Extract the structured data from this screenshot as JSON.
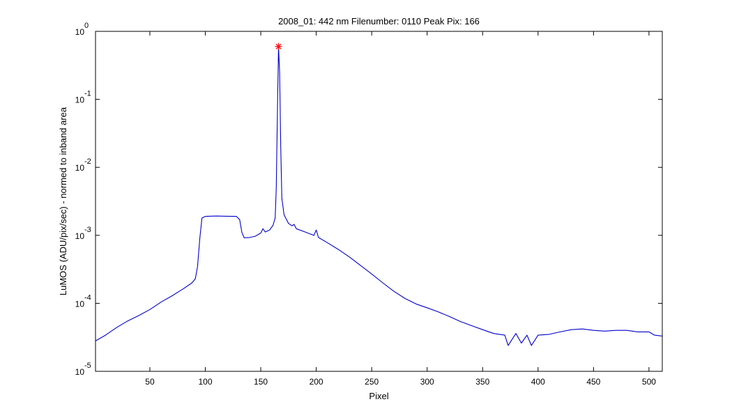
{
  "chart_data": {
    "type": "line",
    "title": "2008_01: 442 nm  Filenumber: 0110 Peak Pix: 166",
    "xlabel": "Pixel",
    "ylabel": "LuMOS (ADU/pix/sec) - normed to inband area",
    "xlim": [
      1,
      512
    ],
    "ylim": [
      1e-05,
      1
    ],
    "yscale": "log",
    "grid": false,
    "x_ticks": [
      50,
      100,
      150,
      200,
      250,
      300,
      350,
      400,
      450,
      500
    ],
    "y_ticks": [
      {
        "value": 1,
        "base": "10",
        "exp": "0"
      },
      {
        "value": 0.1,
        "base": "10",
        "exp": "-1"
      },
      {
        "value": 0.01,
        "base": "10",
        "exp": "-2"
      },
      {
        "value": 0.001,
        "base": "10",
        "exp": "-3"
      },
      {
        "value": 0.0001,
        "base": "10",
        "exp": "-4"
      },
      {
        "value": 1e-05,
        "base": "10",
        "exp": "-5"
      }
    ],
    "series": [
      {
        "color": "#0000cc",
        "points": [
          [
            1,
            2.8e-05
          ],
          [
            10,
            3.4e-05
          ],
          [
            20,
            4.4e-05
          ],
          [
            30,
            5.5e-05
          ],
          [
            40,
            6.6e-05
          ],
          [
            50,
            8.1e-05
          ],
          [
            60,
            0.000104
          ],
          [
            70,
            0.000129
          ],
          [
            80,
            0.000163
          ],
          [
            88,
            0.0002
          ],
          [
            91,
            0.00023
          ],
          [
            93,
            0.00035
          ],
          [
            95,
            0.0009
          ],
          [
            97,
            0.0018
          ],
          [
            100,
            0.0019
          ],
          [
            110,
            0.00192
          ],
          [
            120,
            0.00191
          ],
          [
            128,
            0.0019
          ],
          [
            131,
            0.0017
          ],
          [
            133,
            0.0011
          ],
          [
            135,
            0.00092
          ],
          [
            140,
            0.00093
          ],
          [
            145,
            0.00097
          ],
          [
            150,
            0.00108
          ],
          [
            152,
            0.00125
          ],
          [
            154,
            0.00112
          ],
          [
            158,
            0.0012
          ],
          [
            161,
            0.0014
          ],
          [
            163,
            0.0018
          ],
          [
            164,
            0.005
          ],
          [
            165,
            0.06
          ],
          [
            166,
            0.6
          ],
          [
            167,
            0.25
          ],
          [
            168,
            0.02
          ],
          [
            169,
            0.0035
          ],
          [
            171,
            0.002
          ],
          [
            175,
            0.0015
          ],
          [
            178,
            0.00138
          ],
          [
            180,
            0.00145
          ],
          [
            182,
            0.00125
          ],
          [
            190,
            0.00112
          ],
          [
            195,
            0.00104
          ],
          [
            198,
            0.001
          ],
          [
            200,
            0.0012
          ],
          [
            202,
            0.00093
          ],
          [
            210,
            0.00078
          ],
          [
            220,
            0.00062
          ],
          [
            230,
            0.00048
          ],
          [
            240,
            0.00036
          ],
          [
            250,
            0.00027
          ],
          [
            260,
            0.0002
          ],
          [
            270,
            0.00015
          ],
          [
            280,
            0.000118
          ],
          [
            290,
            9.8e-05
          ],
          [
            300,
            8.6e-05
          ],
          [
            310,
            7.5e-05
          ],
          [
            320,
            6.4e-05
          ],
          [
            330,
            5.4e-05
          ],
          [
            340,
            4.7e-05
          ],
          [
            350,
            4.1e-05
          ],
          [
            360,
            3.6e-05
          ],
          [
            370,
            3.4e-05
          ],
          [
            373,
            2.4e-05
          ],
          [
            380,
            3.6e-05
          ],
          [
            385,
            2.6e-05
          ],
          [
            390,
            3.4e-05
          ],
          [
            394,
            2.4e-05
          ],
          [
            400,
            3.4e-05
          ],
          [
            410,
            3.5e-05
          ],
          [
            420,
            3.8e-05
          ],
          [
            430,
            4.1e-05
          ],
          [
            440,
            4.2e-05
          ],
          [
            450,
            4e-05
          ],
          [
            460,
            3.9e-05
          ],
          [
            470,
            4e-05
          ],
          [
            480,
            4e-05
          ],
          [
            490,
            3.8e-05
          ],
          [
            500,
            3.8e-05
          ],
          [
            505,
            3.4e-05
          ],
          [
            512,
            3.3e-05
          ]
        ]
      }
    ],
    "peak_marker": {
      "x": 166,
      "y": 0.6,
      "symbol": "*",
      "color": "#ff0000"
    }
  }
}
